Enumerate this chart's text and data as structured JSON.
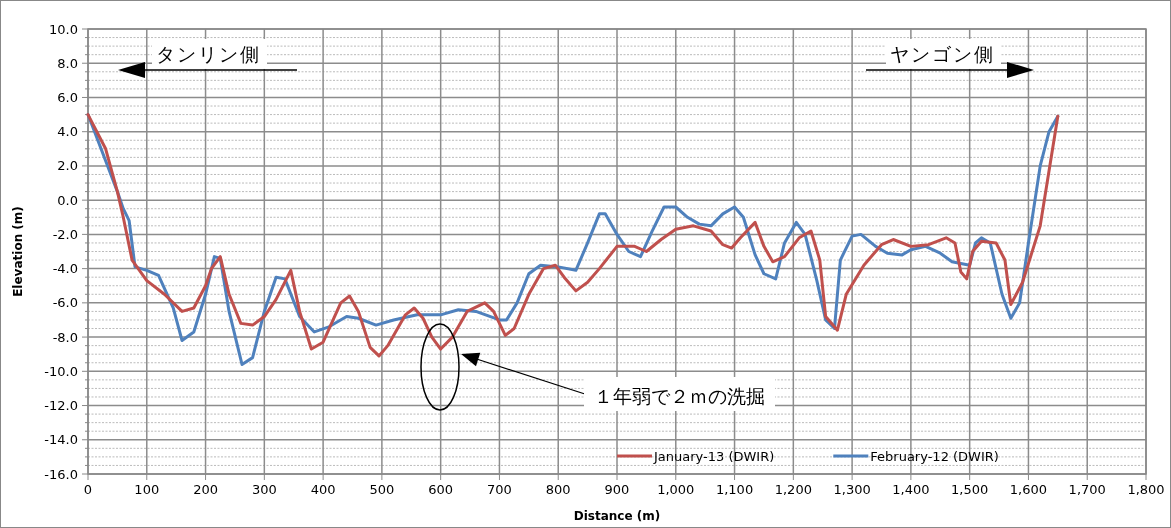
{
  "chart_data": {
    "type": "line",
    "xlabel": "Distance (m)",
    "ylabel": "Elevation (m)",
    "xlim": [
      0,
      1800
    ],
    "xticks": [
      0,
      100,
      200,
      300,
      400,
      500,
      600,
      700,
      800,
      900,
      {
        "value": 1000,
        "label": "1,000"
      },
      {
        "value": 1100,
        "label": "1,100"
      },
      {
        "value": 1200,
        "label": "1,200"
      },
      {
        "value": 1300,
        "label": "1,300"
      },
      {
        "value": 1400,
        "label": "1,400"
      },
      {
        "value": 1500,
        "label": "1,500"
      },
      {
        "value": 1600,
        "label": "1,600"
      },
      {
        "value": 1700,
        "label": "1,700"
      },
      {
        "value": 1800,
        "label": "1,800"
      }
    ],
    "ylim": [
      -16,
      10
    ],
    "yticks": [
      {
        "value": 10,
        "label": "10.0"
      },
      {
        "value": 9.5,
        "label": null
      },
      {
        "value": 9,
        "label": null
      },
      {
        "value": 8.5,
        "label": null
      },
      {
        "value": 8,
        "label": "8.0"
      },
      {
        "value": 7.5,
        "label": null
      },
      {
        "value": 7,
        "label": null
      },
      {
        "value": 6.5,
        "label": null
      },
      {
        "value": 6,
        "label": "6.0"
      },
      {
        "value": 5.5,
        "label": null
      },
      {
        "value": 5,
        "label": null
      },
      {
        "value": 4.5,
        "label": null
      },
      {
        "value": 4,
        "label": "4.0"
      },
      {
        "value": 3.5,
        "label": null
      },
      {
        "value": 3,
        "label": null
      },
      {
        "value": 2.5,
        "label": null
      },
      {
        "value": 2,
        "label": "2.0"
      },
      {
        "value": 1.5,
        "label": null
      },
      {
        "value": 1,
        "label": null
      },
      {
        "value": 0.5,
        "label": null
      },
      {
        "value": 0,
        "label": "0.0"
      },
      {
        "value": -0.5,
        "label": null
      },
      {
        "value": -1,
        "label": null
      },
      {
        "value": -1.5,
        "label": null
      },
      {
        "value": -2,
        "label": "-2.0"
      },
      {
        "value": -2.5,
        "label": null
      },
      {
        "value": -3,
        "label": null
      },
      {
        "value": -3.5,
        "label": null
      },
      {
        "value": -4,
        "label": "-4.0"
      },
      {
        "value": -4.5,
        "label": null
      },
      {
        "value": -5,
        "label": null
      },
      {
        "value": -5.5,
        "label": null
      },
      {
        "value": -6,
        "label": "-6.0"
      },
      {
        "value": -6.5,
        "label": null
      },
      {
        "value": -7,
        "label": null
      },
      {
        "value": -7.5,
        "label": null
      },
      {
        "value": -8,
        "label": "-8.0"
      },
      {
        "value": -8.5,
        "label": null
      },
      {
        "value": -9,
        "label": null
      },
      {
        "value": -9.5,
        "label": null
      },
      {
        "value": -10,
        "label": "-10.0"
      },
      {
        "value": -10.5,
        "label": null
      },
      {
        "value": -11,
        "label": null
      },
      {
        "value": -11.5,
        "label": null
      },
      {
        "value": -12,
        "label": "-12.0"
      },
      {
        "value": -12.5,
        "label": null
      },
      {
        "value": -13,
        "label": null
      },
      {
        "value": -13.5,
        "label": null
      },
      {
        "value": -14,
        "label": "-14.0"
      },
      {
        "value": -14.5,
        "label": null
      },
      {
        "value": -15,
        "label": null
      },
      {
        "value": -15.5,
        "label": null
      },
      {
        "value": -16,
        "label": "-16.0"
      }
    ],
    "grid": true,
    "legend": "bottom right",
    "line_style": "solid",
    "series": [
      {
        "name": "January-13 (DWIR)",
        "color": "#c0504d",
        "x": [
          0,
          30,
          50,
          60,
          75,
          100,
          130,
          160,
          180,
          200,
          210,
          225,
          240,
          260,
          280,
          300,
          320,
          345,
          360,
          380,
          400,
          430,
          445,
          460,
          480,
          495,
          510,
          540,
          555,
          570,
          585,
          600,
          620,
          645,
          675,
          690,
          710,
          725,
          750,
          775,
          795,
          810,
          830,
          850,
          870,
          900,
          930,
          950,
          975,
          1000,
          1030,
          1060,
          1080,
          1095,
          1110,
          1135,
          1150,
          1165,
          1185,
          1210,
          1230,
          1245,
          1255,
          1275,
          1290,
          1320,
          1350,
          1370,
          1400,
          1430,
          1460,
          1475,
          1485,
          1495,
          1505,
          1520,
          1545,
          1560,
          1570,
          1590,
          1620,
          1650
        ],
        "values": [
          5,
          3,
          0.5,
          -1,
          -3.5,
          -4.7,
          -5.5,
          -6.5,
          -6.3,
          -5,
          -4,
          -3.3,
          -5.5,
          -7.2,
          -7.3,
          -6.8,
          -5.8,
          -4.1,
          -6.5,
          -8.7,
          -8.3,
          -6,
          -5.6,
          -6.5,
          -8.6,
          -9.1,
          -8.5,
          -6.7,
          -6.3,
          -6.9,
          -8,
          -8.7,
          -8,
          -6.5,
          -6,
          -6.5,
          -7.9,
          -7.5,
          -5.5,
          -4,
          -3.8,
          -4.5,
          -5.3,
          -4.8,
          -4,
          -2.7,
          -2.7,
          -3,
          -2.3,
          -1.7,
          -1.5,
          -1.8,
          -2.6,
          -2.8,
          -2.2,
          -1.3,
          -2.7,
          -3.6,
          -3.3,
          -2.2,
          -1.8,
          -3.5,
          -6.8,
          -7.6,
          -5.5,
          -3.8,
          -2.6,
          -2.3,
          -2.7,
          -2.6,
          -2.2,
          -2.5,
          -4.2,
          -4.6,
          -3,
          -2.4,
          -2.5,
          -3.5,
          -6.1,
          -4.8,
          -1.5,
          4.9
        ]
      },
      {
        "name": "February-12 (DWIR)",
        "color": "#4f81bd",
        "x": [
          0,
          50,
          60,
          70,
          80,
          100,
          120,
          145,
          160,
          180,
          200,
          215,
          225,
          240,
          262,
          280,
          300,
          320,
          335,
          360,
          385,
          410,
          440,
          460,
          490,
          520,
          560,
          600,
          630,
          660,
          700,
          712,
          730,
          750,
          770,
          800,
          830,
          850,
          870,
          880,
          900,
          920,
          940,
          960,
          980,
          1000,
          1020,
          1040,
          1060,
          1080,
          1100,
          1115,
          1135,
          1150,
          1170,
          1185,
          1205,
          1220,
          1240,
          1255,
          1270,
          1280,
          1300,
          1315,
          1340,
          1360,
          1385,
          1400,
          1425,
          1450,
          1470,
          1500,
          1510,
          1520,
          1535,
          1555,
          1570,
          1585,
          1600,
          1620,
          1635,
          1650
        ],
        "values": [
          5,
          0.5,
          -0.5,
          -1.2,
          -3.9,
          -4.1,
          -4.4,
          -6.3,
          -8.2,
          -7.7,
          -5.5,
          -3.3,
          -3.4,
          -6.5,
          -9.6,
          -9.2,
          -6.5,
          -4.5,
          -4.6,
          -6.8,
          -7.7,
          -7.4,
          -6.8,
          -6.9,
          -7.3,
          -7,
          -6.7,
          -6.7,
          -6.4,
          -6.5,
          -7,
          -7,
          -6,
          -4.3,
          -3.8,
          -3.9,
          -4.1,
          -2.5,
          -0.8,
          -0.8,
          -2,
          -3,
          -3.3,
          -1.8,
          -0.4,
          -0.4,
          -1,
          -1.4,
          -1.5,
          -0.8,
          -0.4,
          -1,
          -3.2,
          -4.3,
          -4.6,
          -2.5,
          -1.3,
          -2,
          -4.7,
          -7,
          -7.5,
          -3.5,
          -2.1,
          -2,
          -2.7,
          -3.1,
          -3.2,
          -2.9,
          -2.7,
          -3.1,
          -3.6,
          -3.8,
          -2.5,
          -2.2,
          -2.5,
          -5.5,
          -6.9,
          -6,
          -2.5,
          2,
          4,
          4.9
        ]
      }
    ],
    "annotations": [
      "タンリン側",
      "ヤンゴン側",
      "１年弱で２ｍの洗掘"
    ]
  }
}
